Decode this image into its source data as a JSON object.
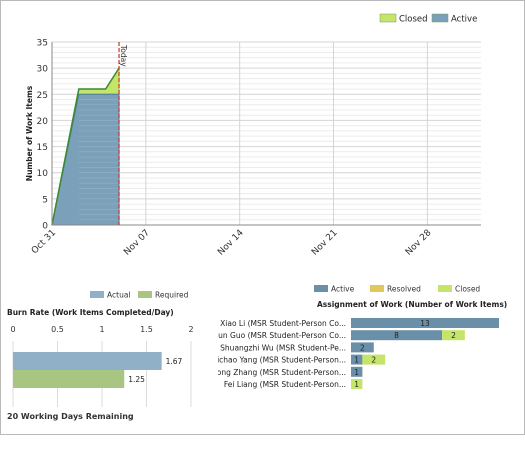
{
  "chart_data": [
    {
      "type": "area",
      "title": "",
      "xlabel": "",
      "ylabel": "Number of Work Items",
      "ylim": [
        0,
        35
      ],
      "y_ticks": [
        0,
        5,
        10,
        15,
        20,
        25,
        30,
        35
      ],
      "x_tick_labels": [
        "Oct 31",
        "Nov 07",
        "Nov 14",
        "Nov 21",
        "Nov 28"
      ],
      "x_range": [
        "2011-10-31",
        "2011-12-02"
      ],
      "grid": true,
      "stacked": true,
      "legend": {
        "position": "top-right"
      },
      "today": {
        "date": "2011-11-05",
        "label": "Today"
      },
      "x": [
        "2011-10-31",
        "2011-11-02",
        "2011-11-04",
        "2011-11-05"
      ],
      "series": [
        {
          "name": "Active",
          "color": "#7ba0b9",
          "values": [
            0,
            25,
            25,
            25
          ]
        },
        {
          "name": "Closed",
          "color": "#c5e46a",
          "values": [
            0,
            1,
            1,
            5
          ]
        }
      ],
      "legend_order": [
        "Closed",
        "Active"
      ]
    },
    {
      "type": "bar",
      "orientation": "horizontal",
      "title": "Burn Rate (Work Items Completed/Day)",
      "xlim": [
        0,
        2
      ],
      "x_ticks": [
        0,
        0.5,
        1,
        1.5,
        2
      ],
      "x_tick_labels": [
        "0",
        "0.5",
        "1",
        "1.5",
        "2"
      ],
      "legend": {
        "position": "top"
      },
      "series": [
        {
          "name": "Actual",
          "color": "#8fb0c6",
          "value": 1.67,
          "label": "1.67"
        },
        {
          "name": "Required",
          "color": "#a8c582",
          "value": 1.25,
          "label": "1.25"
        }
      ]
    },
    {
      "type": "bar",
      "orientation": "horizontal",
      "stacked": true,
      "title": "Assignment of Work (Number of Work Items)",
      "legend": {
        "position": "top"
      },
      "categories": [
        "Xiao Li (MSR Student-Person Co...",
        "Jun Guo (MSR Student-Person Co...",
        "Shuangzhi Wu (MSR Student-Pe...",
        "Xichao Yang (MSR Student-Person...",
        "Xiong Zhang (MSR Student-Person...",
        "Fei Liang (MSR Student-Person..."
      ],
      "series": [
        {
          "name": "Active",
          "color": "#6a8fa8",
          "values": [
            13,
            8,
            2,
            1,
            1,
            0
          ]
        },
        {
          "name": "Resolved",
          "color": "#e2c75d",
          "values": [
            0,
            0,
            0,
            0,
            0,
            0
          ]
        },
        {
          "name": "Closed",
          "color": "#c5e46a",
          "values": [
            0,
            2,
            0,
            2,
            0,
            1
          ]
        }
      ]
    }
  ],
  "footer": {
    "remaining": "20 Working Days Remaining"
  }
}
